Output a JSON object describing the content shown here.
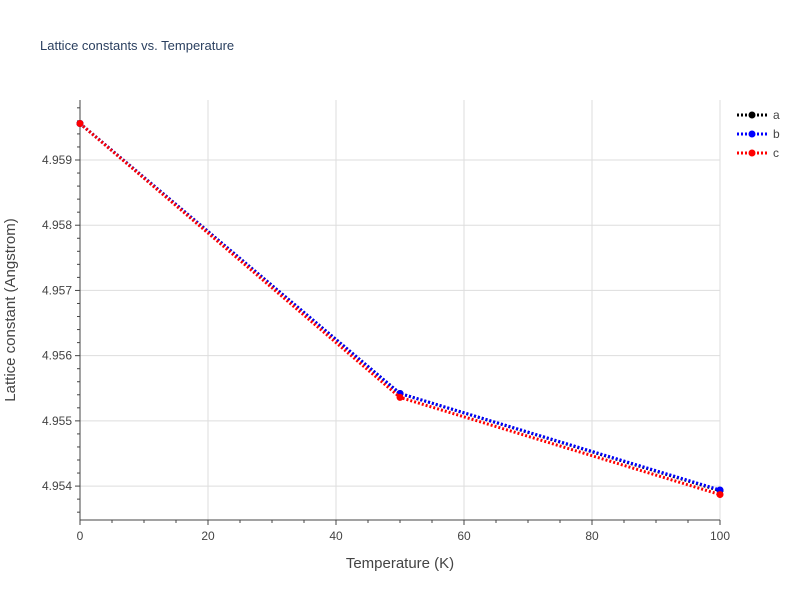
{
  "chart_data": {
    "type": "line",
    "title": "Lattice constants vs. Temperature",
    "xlabel": "Temperature (K)",
    "ylabel": "Lattice constant (Angstrom)",
    "xlim": [
      0,
      100
    ],
    "ylim": [
      4.95348,
      4.95992
    ],
    "x_ticks": [
      0,
      20,
      40,
      60,
      80,
      100
    ],
    "y_ticks": [
      4.954,
      4.955,
      4.956,
      4.957,
      4.958,
      4.959
    ],
    "x_tick_labels": [
      "0",
      "20",
      "40",
      "60",
      "80",
      "100"
    ],
    "y_tick_labels": [
      "4.954",
      "4.955",
      "4.956",
      "4.957",
      "4.958",
      "4.959"
    ],
    "grid": true,
    "legend_position": "top-right",
    "series": [
      {
        "name": "a",
        "color": "#000000",
        "x": [
          0,
          50,
          100
        ],
        "y": [
          4.95956,
          4.95542,
          4.95393
        ]
      },
      {
        "name": "b",
        "color": "#0000ff",
        "x": [
          0,
          50,
          100
        ],
        "y": [
          4.95956,
          4.95542,
          4.95394
        ]
      },
      {
        "name": "c",
        "color": "#ff0000",
        "x": [
          0,
          50,
          100
        ],
        "y": [
          4.95956,
          4.95536,
          4.95387
        ]
      }
    ]
  }
}
